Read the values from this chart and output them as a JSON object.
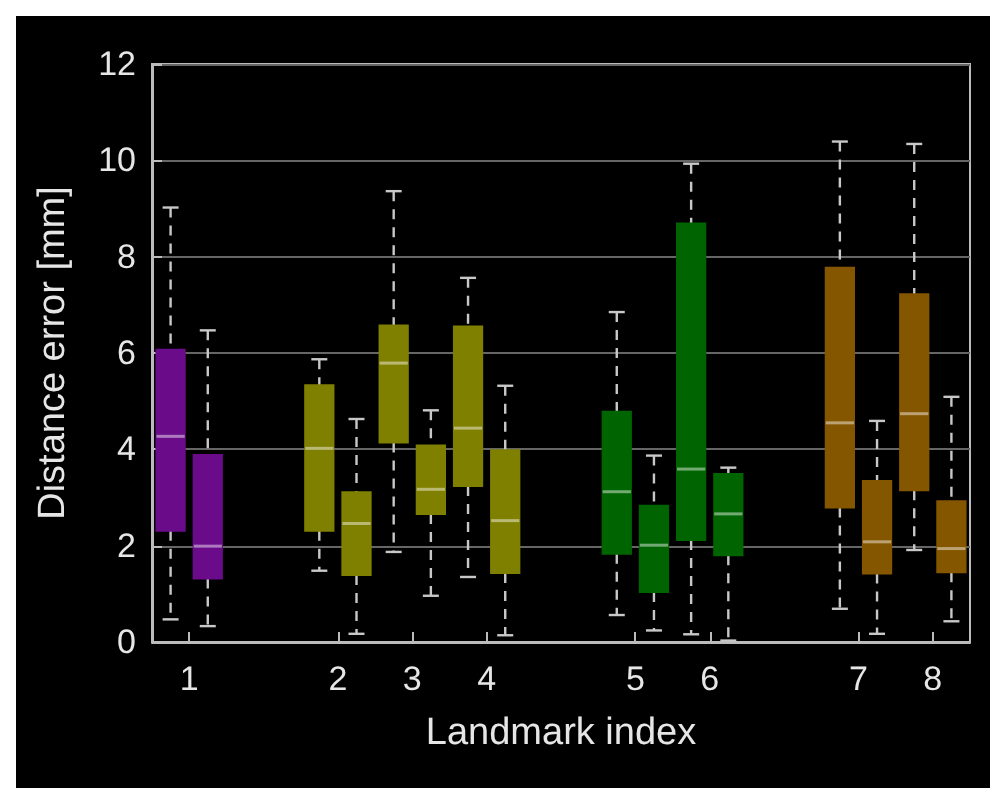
{
  "chart_data": {
    "type": "box",
    "xlabel": "Landmark index",
    "ylabel": "Distance error [mm]",
    "categories": [
      "1",
      null,
      "2",
      "3",
      "4",
      null,
      "5",
      "6",
      null,
      "7",
      "8"
    ],
    "ylim": [
      0,
      12
    ],
    "yticks": [
      0,
      2,
      4,
      6,
      8,
      10,
      12
    ],
    "grid": "y",
    "series": [
      {
        "colors": [
          "#6a0c8a",
          null,
          "#808000",
          "#808000",
          "#808000",
          null,
          "#006400",
          "#006400",
          null,
          "#855600",
          "#855600"
        ],
        "boxes": [
          {
            "low": 0.47,
            "q1": 2.31,
            "median": 4.27,
            "q3": 6.07,
            "high": 9.02
          },
          null,
          {
            "low": 1.48,
            "q1": 2.31,
            "median": 4.02,
            "q3": 5.33,
            "high": 5.87
          },
          {
            "low": 1.87,
            "q1": 4.14,
            "median": 5.79,
            "q3": 6.57,
            "high": 9.36
          },
          {
            "low": 1.35,
            "q1": 3.24,
            "median": 4.44,
            "q3": 6.55,
            "high": 7.56
          },
          null,
          {
            "low": 0.56,
            "q1": 1.83,
            "median": 3.12,
            "q3": 4.78,
            "high": 6.85
          },
          {
            "low": 0.16,
            "q1": 2.12,
            "median": 3.59,
            "q3": 8.69,
            "high": 9.93
          },
          null,
          {
            "low": 0.69,
            "q1": 2.79,
            "median": 4.55,
            "q3": 7.77,
            "high": 10.39
          },
          {
            "low": 1.91,
            "q1": 3.15,
            "median": 4.74,
            "q3": 7.22,
            "high": 10.34
          }
        ]
      },
      {
        "colors": [
          "#6a0c8a",
          null,
          "#808000",
          "#808000",
          "#808000",
          null,
          "#006400",
          "#006400",
          null,
          "#855600",
          "#855600"
        ],
        "boxes": [
          {
            "low": 0.33,
            "q1": 1.32,
            "median": 1.99,
            "q3": 3.88,
            "high": 6.47
          },
          null,
          {
            "low": 0.17,
            "q1": 1.39,
            "median": 2.46,
            "q3": 3.11,
            "high": 4.63
          },
          {
            "low": 0.96,
            "q1": 2.66,
            "median": 3.17,
            "q3": 4.08,
            "high": 4.81
          },
          {
            "low": 0.14,
            "q1": 1.43,
            "median": 2.52,
            "q3": 3.98,
            "high": 5.32
          },
          null,
          {
            "low": 0.24,
            "q1": 1.04,
            "median": 2.01,
            "q3": 2.83,
            "high": 3.87
          },
          {
            "low": 0.03,
            "q1": 1.8,
            "median": 2.66,
            "q3": 3.49,
            "high": 3.62
          },
          null,
          {
            "low": 0.17,
            "q1": 1.42,
            "median": 2.08,
            "q3": 3.34,
            "high": 4.59
          },
          {
            "low": 0.43,
            "q1": 1.45,
            "median": 1.94,
            "q3": 2.92,
            "high": 5.09
          }
        ]
      }
    ]
  }
}
